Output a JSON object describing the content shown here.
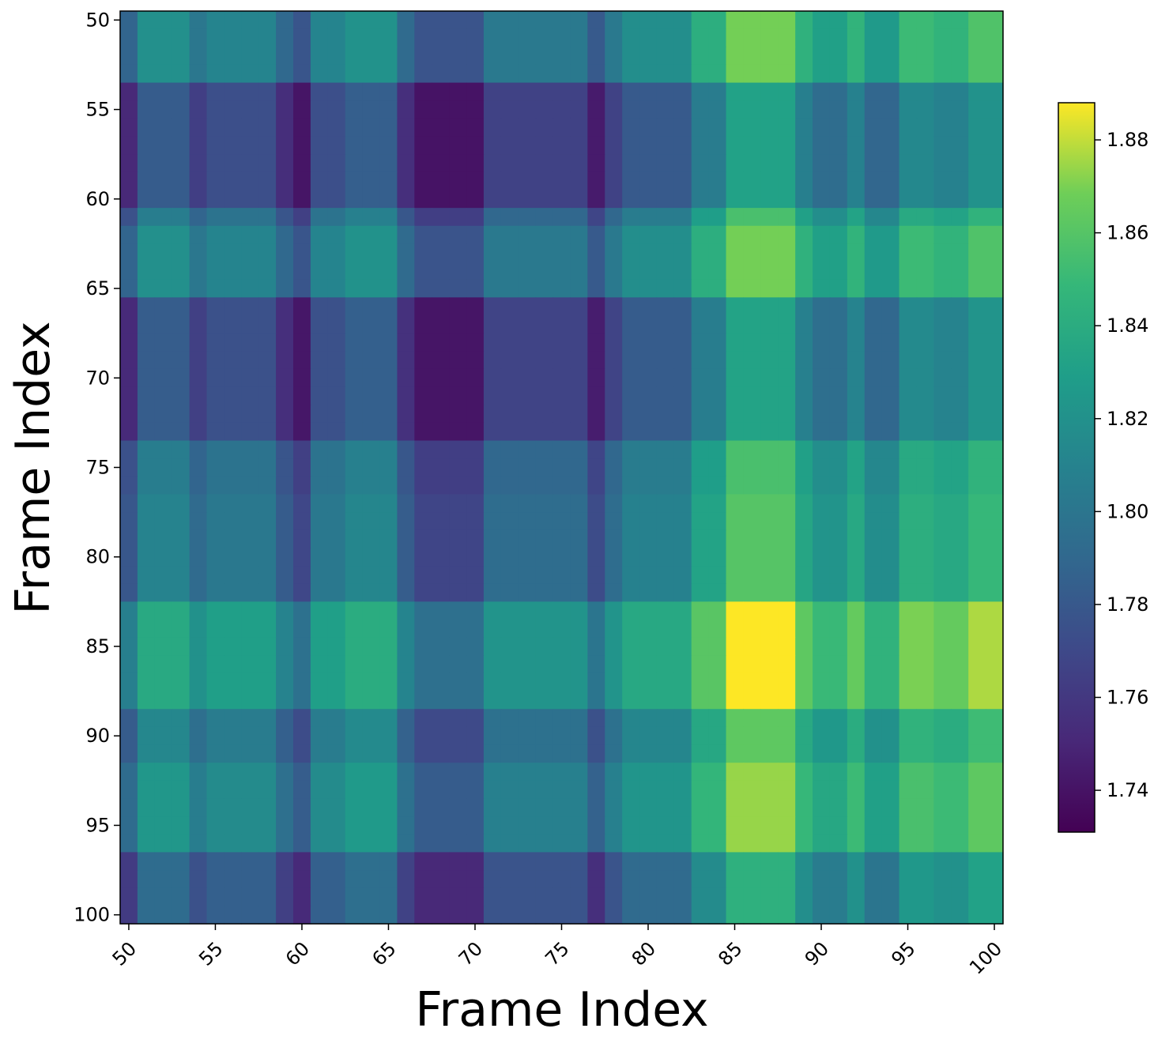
{
  "chart_data": {
    "type": "heatmap",
    "title": "",
    "xlabel": "Frame Index",
    "ylabel": "Frame Index",
    "x_range": [
      50,
      100
    ],
    "y_range": [
      50,
      100
    ],
    "y_axis_inverted": true,
    "x_ticks": [
      "50",
      "55",
      "60",
      "65",
      "70",
      "75",
      "80",
      "85",
      "90",
      "95",
      "100"
    ],
    "y_ticks": [
      "50",
      "55",
      "60",
      "65",
      "70",
      "75",
      "80",
      "85",
      "90",
      "95",
      "100"
    ],
    "x_tick_rotation_deg": 45,
    "colormap": "viridis",
    "colorbar": {
      "range": [
        1.731,
        1.888
      ],
      "ticks": [
        "1.74",
        "1.76",
        "1.78",
        "1.80",
        "1.82",
        "1.84",
        "1.86",
        "1.88"
      ],
      "placement": "right"
    },
    "grid": false,
    "description_of_values": "Symmetric frame-to-frame matrix; value at (row, col) approximately equals row_factor + col_factor. Highest values (~1.888) near rows 84-88 x columns 84-88; lowest (~1.731) near rows 54-58 x columns 66-70 and column 60.",
    "row_factors": [
      {
        "from": 50,
        "to": 53,
        "value": 0.906
      },
      {
        "from": 54,
        "to": 60,
        "value": 0.869
      },
      {
        "from": 61,
        "to": 61,
        "value": 0.893
      },
      {
        "from": 62,
        "to": 65,
        "value": 0.906
      },
      {
        "from": 66,
        "to": 73,
        "value": 0.87
      },
      {
        "from": 74,
        "to": 76,
        "value": 0.893
      },
      {
        "from": 77,
        "to": 82,
        "value": 0.897
      },
      {
        "from": 83,
        "to": 88,
        "value": 0.925
      },
      {
        "from": 89,
        "to": 91,
        "value": 0.9
      },
      {
        "from": 92,
        "to": 96,
        "value": 0.911
      },
      {
        "from": 97,
        "to": 100,
        "value": 0.88
      }
    ],
    "col_factors": [
      {
        "from": 50,
        "to": 50,
        "value": 0.882
      },
      {
        "from": 51,
        "to": 53,
        "value": 0.913
      },
      {
        "from": 54,
        "to": 54,
        "value": 0.895
      },
      {
        "from": 55,
        "to": 58,
        "value": 0.905
      },
      {
        "from": 59,
        "to": 59,
        "value": 0.885
      },
      {
        "from": 60,
        "to": 60,
        "value": 0.872
      },
      {
        "from": 61,
        "to": 62,
        "value": 0.905
      },
      {
        "from": 63,
        "to": 65,
        "value": 0.915
      },
      {
        "from": 66,
        "to": 66,
        "value": 0.886
      },
      {
        "from": 67,
        "to": 70,
        "value": 0.871
      },
      {
        "from": 71,
        "to": 76,
        "value": 0.897
      },
      {
        "from": 77,
        "to": 77,
        "value": 0.875
      },
      {
        "from": 78,
        "to": 78,
        "value": 0.897
      },
      {
        "from": 79,
        "to": 82,
        "value": 0.912
      },
      {
        "from": 83,
        "to": 84,
        "value": 0.936
      },
      {
        "from": 85,
        "to": 88,
        "value": 0.963
      },
      {
        "from": 89,
        "to": 89,
        "value": 0.938
      },
      {
        "from": 90,
        "to": 91,
        "value": 0.925
      },
      {
        "from": 92,
        "to": 92,
        "value": 0.94
      },
      {
        "from": 93,
        "to": 94,
        "value": 0.92
      },
      {
        "from": 95,
        "to": 96,
        "value": 0.945
      },
      {
        "from": 97,
        "to": 98,
        "value": 0.94
      },
      {
        "from": 99,
        "to": 100,
        "value": 0.952
      }
    ]
  }
}
